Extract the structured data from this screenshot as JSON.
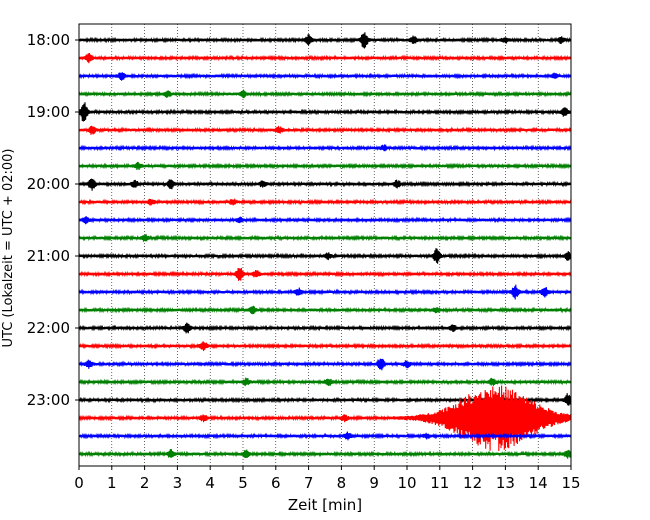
{
  "chart_data": {
    "type": "line",
    "title": "",
    "xlabel": "Zeit  [min]",
    "ylabel": "UTC (Lokalzeit = UTC + 02:00)",
    "xlim": [
      0,
      15
    ],
    "x_ticks": [
      "0",
      "1",
      "2",
      "3",
      "4",
      "5",
      "6",
      "7",
      "8",
      "9",
      "10",
      "11",
      "12",
      "13",
      "14",
      "15"
    ],
    "y_tick_labels": [
      "18:00",
      "19:00",
      "20:00",
      "21:00",
      "22:00",
      "23:00"
    ],
    "grid": "vertical dotted",
    "trace_interval_minutes": 15,
    "trace_colors": [
      "#000000",
      "#ff0000",
      "#0000ff",
      "#008000"
    ],
    "traces": [
      {
        "start": "18:00",
        "events": [
          {
            "t": 7.0,
            "amp": 1.2
          },
          {
            "t": 8.7,
            "amp": 2.2
          },
          {
            "t": 10.2,
            "amp": 0.8
          },
          {
            "t": 13.0,
            "amp": 0.7
          },
          {
            "t": 14.7,
            "amp": 0.8
          }
        ]
      },
      {
        "start": "18:15",
        "events": [
          {
            "t": 0.3,
            "amp": 1.0
          }
        ]
      },
      {
        "start": "18:30",
        "events": [
          {
            "t": 1.3,
            "amp": 1.0
          },
          {
            "t": 14.5,
            "amp": 0.6
          }
        ]
      },
      {
        "start": "18:45",
        "events": [
          {
            "t": 2.7,
            "amp": 0.8
          },
          {
            "t": 5.0,
            "amp": 0.8
          }
        ]
      },
      {
        "start": "19:00",
        "events": [
          {
            "t": 0.15,
            "amp": 2.5
          },
          {
            "t": 14.8,
            "amp": 1.0
          }
        ]
      },
      {
        "start": "19:15",
        "events": [
          {
            "t": 0.4,
            "amp": 1.0
          },
          {
            "t": 6.1,
            "amp": 0.7
          }
        ]
      },
      {
        "start": "19:30",
        "events": [
          {
            "t": 9.3,
            "amp": 0.6
          }
        ]
      },
      {
        "start": "19:45",
        "events": [
          {
            "t": 1.8,
            "amp": 0.8
          }
        ]
      },
      {
        "start": "20:00",
        "events": [
          {
            "t": 0.4,
            "amp": 1.5
          },
          {
            "t": 1.7,
            "amp": 0.8
          },
          {
            "t": 2.8,
            "amp": 1.1
          },
          {
            "t": 5.6,
            "amp": 0.7
          },
          {
            "t": 9.7,
            "amp": 0.8
          }
        ]
      },
      {
        "start": "20:15",
        "events": [
          {
            "t": 2.2,
            "amp": 0.6
          },
          {
            "t": 4.7,
            "amp": 0.7
          }
        ]
      },
      {
        "start": "20:30",
        "events": [
          {
            "t": 0.2,
            "amp": 0.8
          },
          {
            "t": 4.9,
            "amp": 0.6
          }
        ]
      },
      {
        "start": "20:45",
        "events": [
          {
            "t": 2.0,
            "amp": 0.8
          }
        ]
      },
      {
        "start": "21:00",
        "events": [
          {
            "t": 7.6,
            "amp": 0.7
          },
          {
            "t": 10.9,
            "amp": 1.8
          },
          {
            "t": 14.9,
            "amp": 1.0
          }
        ]
      },
      {
        "start": "21:15",
        "events": [
          {
            "t": 4.9,
            "amp": 1.6
          },
          {
            "t": 5.4,
            "amp": 0.8
          }
        ]
      },
      {
        "start": "21:30",
        "events": [
          {
            "t": 6.7,
            "amp": 0.8
          },
          {
            "t": 13.3,
            "amp": 1.6
          },
          {
            "t": 14.2,
            "amp": 1.3
          }
        ]
      },
      {
        "start": "21:45",
        "events": [
          {
            "t": 5.3,
            "amp": 0.8
          },
          {
            "t": 10.9,
            "amp": 0.6
          }
        ]
      },
      {
        "start": "22:00",
        "events": [
          {
            "t": 3.3,
            "amp": 1.2
          },
          {
            "t": 11.4,
            "amp": 0.8
          }
        ]
      },
      {
        "start": "22:15",
        "events": [
          {
            "t": 3.8,
            "amp": 1.0
          }
        ]
      },
      {
        "start": "22:30",
        "events": [
          {
            "t": 0.3,
            "amp": 0.9
          },
          {
            "t": 9.2,
            "amp": 1.6
          },
          {
            "t": 10.0,
            "amp": 0.8
          }
        ]
      },
      {
        "start": "22:45",
        "events": [
          {
            "t": 5.1,
            "amp": 0.8
          },
          {
            "t": 7.6,
            "amp": 0.9
          },
          {
            "t": 12.6,
            "amp": 0.8
          }
        ]
      },
      {
        "start": "23:00",
        "events": [
          {
            "t": 14.9,
            "amp": 1.4
          }
        ]
      },
      {
        "start": "23:15",
        "events": [
          {
            "t": 3.8,
            "amp": 0.8
          },
          {
            "t": 8.1,
            "amp": 0.7
          },
          {
            "t": 12.7,
            "amp": 8.0
          }
        ]
      },
      {
        "start": "23:30",
        "events": [
          {
            "t": 8.2,
            "amp": 0.8
          },
          {
            "t": 10.6,
            "amp": 0.6
          }
        ]
      },
      {
        "start": "23:45",
        "events": [
          {
            "t": 2.8,
            "amp": 0.9
          },
          {
            "t": 5.1,
            "amp": 0.8
          },
          {
            "t": 14.9,
            "amp": 0.9
          }
        ]
      }
    ]
  }
}
